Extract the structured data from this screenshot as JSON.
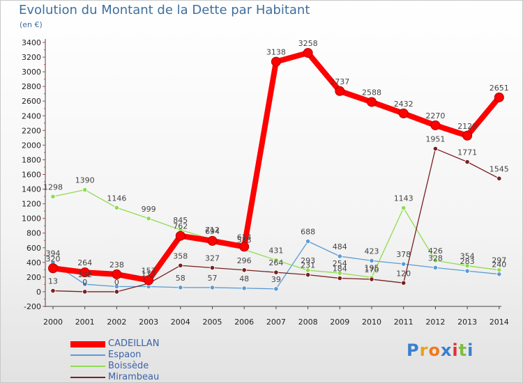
{
  "chart_data": {
    "type": "line",
    "title": "Evolution du Montant de la Dette par Habitant",
    "subtitle": "(en €)",
    "x": [
      "2000",
      "2001",
      "2002",
      "2003",
      "2004",
      "2005",
      "2006",
      "2007",
      "2008",
      "2009",
      "2010",
      "2011",
      "2012",
      "2013",
      "2014"
    ],
    "ylim": [
      -200,
      3400
    ],
    "yticks": [
      -200,
      0,
      200,
      400,
      600,
      800,
      1000,
      1200,
      1400,
      1600,
      1800,
      2000,
      2200,
      2400,
      2600,
      2800,
      3000,
      3200,
      3400
    ],
    "grid": false,
    "legend_position": "bottom-left",
    "series": [
      {
        "name": "CADEILLAN",
        "color": "#ff0000",
        "values": [
          320,
          264,
          238,
          157,
          762,
          694,
          614,
          3138,
          3258,
          2737,
          2588,
          2432,
          2270,
          2129,
          2651
        ],
        "labels": [
          "320",
          "264",
          "238",
          "157",
          "762",
          "694",
          "614",
          "3138",
          "3258",
          "2737",
          "2588",
          "2432",
          "2270",
          "2129",
          "2651"
        ]
      },
      {
        "name": "Espaon",
        "color": "#5b9bd5",
        "values": [
          394,
          102,
          71,
          71,
          58,
          57,
          48,
          39,
          688,
          484,
          423,
          378,
          328,
          283,
          240
        ],
        "labels": [
          "394",
          "102",
          "",
          "",
          "58",
          "57",
          "48",
          "39",
          "688",
          "484",
          "423",
          "378",
          "328",
          "283",
          "240"
        ]
      },
      {
        "name": "Boissède",
        "color": "#8fdc50",
        "values": [
          1298,
          1390,
          1146,
          999,
          845,
          712,
          575,
          431,
          293,
          254,
          195,
          1143,
          426,
          354,
          297
        ],
        "labels": [
          "1298",
          "1390",
          "1146",
          "999",
          "845",
          "712",
          "575",
          "431",
          "293",
          "254",
          "195",
          "1143",
          "426",
          "354",
          "297"
        ]
      },
      {
        "name": "Mirambeau",
        "color": "#7a1f1f",
        "values": [
          13,
          0,
          0,
          113,
          358,
          327,
          296,
          264,
          231,
          184,
          170,
          120,
          1951,
          1771,
          1545
        ],
        "labels": [
          "13",
          "0",
          "0",
          "113",
          "358",
          "327",
          "296",
          "264",
          "231",
          "184",
          "170",
          "120",
          "1951",
          "1771",
          "1545"
        ]
      }
    ]
  },
  "logo": {
    "letters": [
      "P",
      "r",
      "o",
      "x",
      "i",
      "t",
      "i"
    ],
    "colors": [
      "#3a7fd0",
      "#e8a21a",
      "#f07a1a",
      "#3a7fd0",
      "#e03030",
      "#7ac040",
      "#3a7fd0"
    ]
  }
}
